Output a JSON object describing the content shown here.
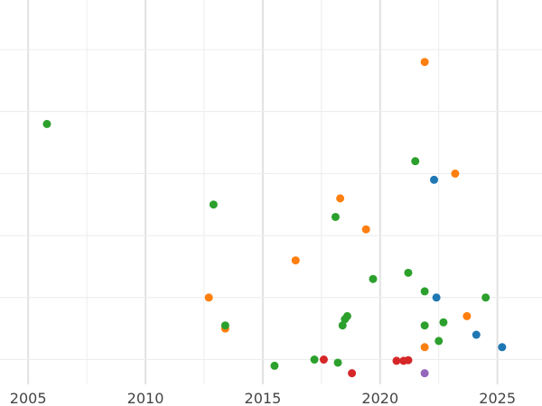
{
  "chart_data": {
    "type": "scatter",
    "title": "",
    "xlabel": "",
    "ylabel": "",
    "xlim": [
      2003.8,
      2026.9
    ],
    "ylim": [
      0.6,
      6.8
    ],
    "x_ticks": [
      2005,
      2010,
      2015,
      2020,
      2025
    ],
    "x_tick_labels": [
      "2005",
      "2010",
      "2015",
      "2020",
      "2025"
    ],
    "x_minor_ticks": [
      2007.5,
      2012.5,
      2017.5,
      2022.5
    ],
    "y_gridlines": [
      1,
      2,
      3,
      4,
      5,
      6
    ],
    "grid": true,
    "legend": "none",
    "series": [
      {
        "color": "#1f77b4",
        "points": [
          [
            2022.3,
            3.9
          ],
          [
            2022.4,
            2.0
          ],
          [
            2024.1,
            1.4
          ],
          [
            2025.2,
            1.2
          ]
        ]
      },
      {
        "color": "#ff7f0e",
        "points": [
          [
            2021.9,
            5.8
          ],
          [
            2023.2,
            4.0
          ],
          [
            2018.3,
            3.6
          ],
          [
            2019.4,
            3.1
          ],
          [
            2016.4,
            2.6
          ],
          [
            2012.7,
            2.0
          ],
          [
            2013.4,
            1.5
          ],
          [
            2023.7,
            1.7
          ],
          [
            2021.9,
            1.2
          ]
        ]
      },
      {
        "color": "#2ca02c",
        "points": [
          [
            2005.8,
            4.8
          ],
          [
            2021.5,
            4.2
          ],
          [
            2012.9,
            3.5
          ],
          [
            2018.1,
            3.3
          ],
          [
            2021.2,
            2.4
          ],
          [
            2019.7,
            2.3
          ],
          [
            2021.9,
            2.1
          ],
          [
            2024.5,
            2.0
          ],
          [
            2018.6,
            1.7
          ],
          [
            2018.5,
            1.65
          ],
          [
            2018.4,
            1.55
          ],
          [
            2022.7,
            1.6
          ],
          [
            2021.9,
            1.55
          ],
          [
            2013.4,
            1.55
          ],
          [
            2022.5,
            1.3
          ],
          [
            2017.2,
            1.0
          ],
          [
            2018.2,
            0.95
          ],
          [
            2015.5,
            0.9
          ]
        ]
      },
      {
        "color": "#d62728",
        "points": [
          [
            2017.6,
            1.0
          ],
          [
            2020.7,
            0.98
          ],
          [
            2021.0,
            0.98
          ],
          [
            2021.2,
            0.99
          ],
          [
            2018.8,
            0.78
          ]
        ]
      },
      {
        "color": "#9467bd",
        "points": [
          [
            2021.9,
            0.78
          ]
        ]
      }
    ]
  }
}
